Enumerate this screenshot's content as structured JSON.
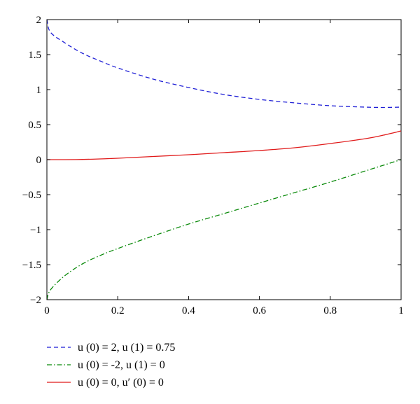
{
  "chart_data": {
    "type": "line",
    "title": "",
    "xlabel": "",
    "ylabel": "",
    "xlim": [
      0,
      1
    ],
    "ylim": [
      -2,
      2
    ],
    "grid": false,
    "legend_position": "below",
    "x_ticks": [
      "0",
      "0.2",
      "0.4",
      "0.6",
      "0.8",
      "1"
    ],
    "y_ticks": [
      "2",
      "1.5",
      "1",
      "0.5",
      "0",
      "-0.5",
      "-1",
      "-1.5",
      "-2"
    ],
    "x_tick_values": [
      0,
      0.2,
      0.4,
      0.6,
      0.8,
      1
    ],
    "y_tick_values": [
      2,
      1.5,
      1,
      0.5,
      0,
      -0.5,
      -1,
      -1.5,
      -2
    ],
    "x": [
      0,
      0.01,
      0.05,
      0.1,
      0.15,
      0.2,
      0.3,
      0.4,
      0.5,
      0.6,
      0.7,
      0.8,
      0.9,
      0.95,
      1
    ],
    "series": [
      {
        "legend_label": "u (0) = 2, u (1) = 0.75",
        "color": "#1f1fd6",
        "dash": "dashed",
        "values": [
          2.0,
          1.82,
          1.67,
          1.52,
          1.41,
          1.31,
          1.15,
          1.03,
          0.93,
          0.86,
          0.81,
          0.77,
          0.75,
          0.745,
          0.75
        ]
      },
      {
        "legend_label": "u (0) = -2, u (1) = 0",
        "color": "#0a8a0a",
        "dash": "dashdot",
        "values": [
          -2.0,
          -1.86,
          -1.66,
          -1.49,
          -1.37,
          -1.27,
          -1.09,
          -0.92,
          -0.77,
          -0.62,
          -0.47,
          -0.32,
          -0.16,
          -0.08,
          0.0
        ]
      },
      {
        "legend_label": "u (0) = 0, u′ (0) = 0",
        "color": "#e01a1a",
        "dash": "solid",
        "values": [
          0.0,
          0.0,
          0.0,
          0.003,
          0.01,
          0.02,
          0.045,
          0.07,
          0.1,
          0.13,
          0.17,
          0.23,
          0.3,
          0.35,
          0.41
        ]
      }
    ]
  }
}
